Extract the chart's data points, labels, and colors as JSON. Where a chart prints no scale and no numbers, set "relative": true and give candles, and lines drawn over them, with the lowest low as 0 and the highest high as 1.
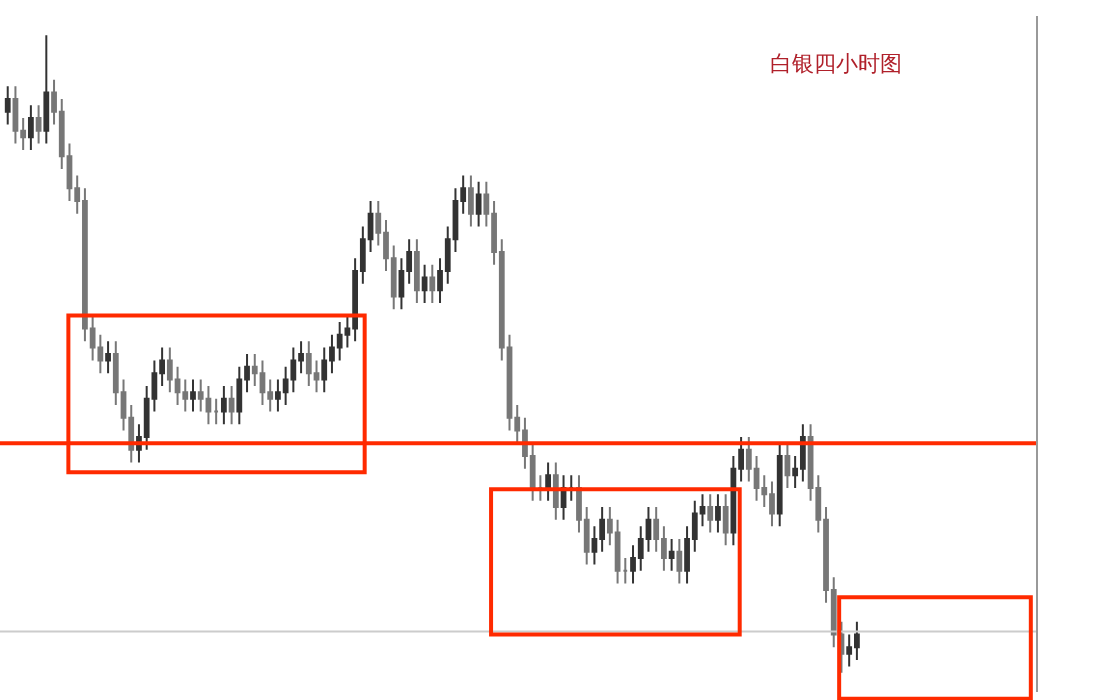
{
  "chart_data": {
    "type": "candlestick",
    "title": "白银四小时图",
    "relative": true,
    "categories": [
      null,
      null,
      null,
      null,
      null,
      null,
      null,
      null,
      null,
      null,
      null,
      null,
      null,
      null,
      null,
      null,
      null,
      null,
      null,
      null,
      null,
      null,
      null,
      null,
      null,
      null,
      null,
      null,
      null,
      null,
      null,
      null,
      null,
      null,
      null,
      null,
      null,
      null,
      null,
      null,
      null,
      null,
      null,
      null,
      null,
      null,
      null,
      null,
      null,
      null,
      null,
      null,
      null,
      null,
      null,
      null,
      null,
      null,
      null,
      null,
      null,
      null,
      null,
      null,
      null,
      null,
      null,
      null,
      null,
      null,
      null,
      null,
      null,
      null,
      null,
      null,
      null,
      null,
      null,
      null,
      null,
      null,
      null,
      null,
      null,
      null,
      null,
      null,
      null,
      null,
      null,
      null,
      null,
      null,
      null,
      null,
      null,
      null,
      null,
      null,
      null,
      null,
      null,
      null,
      null,
      null,
      null,
      null,
      null,
      null,
      null
    ],
    "series": [
      {
        "ohlc": [
          [
            0.88,
            0.92,
            0.86,
            0.9
          ],
          [
            0.9,
            0.92,
            0.83,
            0.85
          ],
          [
            0.85,
            0.87,
            0.82,
            0.84
          ],
          [
            0.84,
            0.89,
            0.82,
            0.87
          ],
          [
            0.87,
            0.89,
            0.83,
            0.85
          ],
          [
            0.85,
            1.0,
            0.83,
            0.91
          ],
          [
            0.91,
            0.93,
            0.86,
            0.88
          ],
          [
            0.88,
            0.9,
            0.79,
            0.81
          ],
          [
            0.81,
            0.83,
            0.74,
            0.76
          ],
          [
            0.76,
            0.78,
            0.72,
            0.74
          ],
          [
            0.74,
            0.76,
            0.52,
            0.54
          ],
          [
            0.54,
            0.56,
            0.49,
            0.51
          ],
          [
            0.51,
            0.53,
            0.47,
            0.49
          ],
          [
            0.49,
            0.52,
            0.47,
            0.5
          ],
          [
            0.5,
            0.52,
            0.42,
            0.44
          ],
          [
            0.44,
            0.46,
            0.38,
            0.4
          ],
          [
            0.4,
            0.42,
            0.33,
            0.35
          ],
          [
            0.35,
            0.39,
            0.33,
            0.37
          ],
          [
            0.37,
            0.45,
            0.35,
            0.43
          ],
          [
            0.43,
            0.49,
            0.41,
            0.47
          ],
          [
            0.47,
            0.51,
            0.45,
            0.49
          ],
          [
            0.49,
            0.51,
            0.44,
            0.46
          ],
          [
            0.46,
            0.48,
            0.42,
            0.44
          ],
          [
            0.44,
            0.46,
            0.41,
            0.43
          ],
          [
            0.43,
            0.46,
            0.41,
            0.44
          ],
          [
            0.44,
            0.46,
            0.41,
            0.43
          ],
          [
            0.43,
            0.45,
            0.39,
            0.41
          ],
          [
            0.41,
            0.43,
            0.39,
            0.41
          ],
          [
            0.41,
            0.45,
            0.39,
            0.43
          ],
          [
            0.43,
            0.45,
            0.39,
            0.41
          ],
          [
            0.41,
            0.48,
            0.39,
            0.46
          ],
          [
            0.46,
            0.5,
            0.44,
            0.48
          ],
          [
            0.48,
            0.5,
            0.45,
            0.47
          ],
          [
            0.47,
            0.49,
            0.42,
            0.44
          ],
          [
            0.44,
            0.46,
            0.41,
            0.43
          ],
          [
            0.43,
            0.46,
            0.41,
            0.44
          ],
          [
            0.44,
            0.48,
            0.42,
            0.46
          ],
          [
            0.46,
            0.51,
            0.44,
            0.49
          ],
          [
            0.49,
            0.52,
            0.47,
            0.5
          ],
          [
            0.5,
            0.52,
            0.45,
            0.47
          ],
          [
            0.47,
            0.49,
            0.44,
            0.46
          ],
          [
            0.46,
            0.51,
            0.44,
            0.49
          ],
          [
            0.49,
            0.53,
            0.47,
            0.51
          ],
          [
            0.51,
            0.55,
            0.49,
            0.53
          ],
          [
            0.53,
            0.56,
            0.51,
            0.54
          ],
          [
            0.54,
            0.65,
            0.52,
            0.63
          ],
          [
            0.63,
            0.7,
            0.61,
            0.68
          ],
          [
            0.68,
            0.74,
            0.66,
            0.72
          ],
          [
            0.72,
            0.74,
            0.67,
            0.69
          ],
          [
            0.69,
            0.71,
            0.63,
            0.65
          ],
          [
            0.65,
            0.67,
            0.57,
            0.59
          ],
          [
            0.59,
            0.65,
            0.57,
            0.63
          ],
          [
            0.63,
            0.68,
            0.61,
            0.66
          ],
          [
            0.66,
            0.68,
            0.58,
            0.6
          ],
          [
            0.6,
            0.64,
            0.58,
            0.62
          ],
          [
            0.62,
            0.64,
            0.58,
            0.6
          ],
          [
            0.6,
            0.65,
            0.58,
            0.63
          ],
          [
            0.63,
            0.7,
            0.61,
            0.68
          ],
          [
            0.68,
            0.76,
            0.66,
            0.74
          ],
          [
            0.74,
            0.78,
            0.72,
            0.76
          ],
          [
            0.76,
            0.78,
            0.7,
            0.72
          ],
          [
            0.72,
            0.77,
            0.7,
            0.75
          ],
          [
            0.75,
            0.77,
            0.7,
            0.72
          ],
          [
            0.72,
            0.74,
            0.64,
            0.66
          ],
          [
            0.66,
            0.68,
            0.49,
            0.51
          ],
          [
            0.51,
            0.53,
            0.38,
            0.4
          ],
          [
            0.4,
            0.42,
            0.36,
            0.38
          ],
          [
            0.38,
            0.4,
            0.32,
            0.34
          ],
          [
            0.34,
            0.36,
            0.27,
            0.29
          ],
          [
            0.29,
            0.31,
            0.27,
            0.29
          ],
          [
            0.29,
            0.33,
            0.27,
            0.31
          ],
          [
            0.31,
            0.33,
            0.24,
            0.26
          ],
          [
            0.26,
            0.31,
            0.24,
            0.29
          ],
          [
            0.29,
            0.31,
            0.27,
            0.29
          ],
          [
            0.29,
            0.31,
            0.22,
            0.24
          ],
          [
            0.24,
            0.26,
            0.17,
            0.19
          ],
          [
            0.19,
            0.23,
            0.17,
            0.21
          ],
          [
            0.21,
            0.26,
            0.19,
            0.24
          ],
          [
            0.24,
            0.26,
            0.2,
            0.22
          ],
          [
            0.22,
            0.24,
            0.14,
            0.16
          ],
          [
            0.16,
            0.18,
            0.14,
            0.16
          ],
          [
            0.16,
            0.2,
            0.14,
            0.18
          ],
          [
            0.18,
            0.23,
            0.16,
            0.21
          ],
          [
            0.21,
            0.26,
            0.19,
            0.24
          ],
          [
            0.24,
            0.26,
            0.19,
            0.21
          ],
          [
            0.21,
            0.23,
            0.16,
            0.18
          ],
          [
            0.18,
            0.21,
            0.16,
            0.19
          ],
          [
            0.19,
            0.21,
            0.14,
            0.16
          ],
          [
            0.16,
            0.23,
            0.14,
            0.21
          ],
          [
            0.21,
            0.27,
            0.19,
            0.25
          ],
          [
            0.25,
            0.28,
            0.23,
            0.26
          ],
          [
            0.26,
            0.28,
            0.22,
            0.24
          ],
          [
            0.24,
            0.28,
            0.22,
            0.26
          ],
          [
            0.26,
            0.28,
            0.2,
            0.22
          ],
          [
            0.22,
            0.34,
            0.2,
            0.32
          ],
          [
            0.32,
            0.37,
            0.3,
            0.35
          ],
          [
            0.35,
            0.37,
            0.3,
            0.32
          ],
          [
            0.32,
            0.34,
            0.27,
            0.29
          ],
          [
            0.29,
            0.31,
            0.26,
            0.28
          ],
          [
            0.28,
            0.3,
            0.23,
            0.25
          ],
          [
            0.25,
            0.36,
            0.23,
            0.34
          ],
          [
            0.34,
            0.36,
            0.29,
            0.31
          ],
          [
            0.31,
            0.34,
            0.29,
            0.32
          ],
          [
            0.32,
            0.39,
            0.3,
            0.37
          ],
          [
            0.37,
            0.39,
            0.27,
            0.29
          ],
          [
            0.29,
            0.31,
            0.22,
            0.24
          ],
          [
            0.24,
            0.26,
            0.11,
            0.13
          ],
          [
            0.13,
            0.15,
            0.04,
            0.06
          ],
          [
            0.06,
            0.08,
            0.0,
            0.03
          ],
          [
            0.03,
            0.06,
            0.01,
            0.04
          ],
          [
            0.04,
            0.08,
            0.02,
            0.06
          ]
        ]
      }
    ],
    "ref_lines": [
      {
        "axis": "y",
        "value": 0.36,
        "color": "#ff2a00"
      },
      {
        "axis": "y",
        "value": 0.065,
        "color": "#cccccc"
      }
    ]
  }
}
